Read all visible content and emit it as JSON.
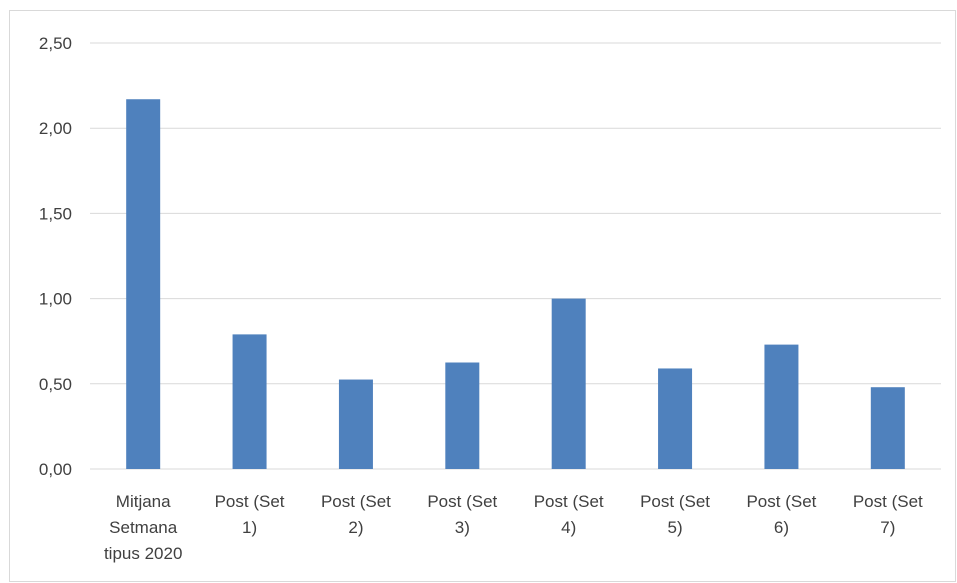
{
  "chart_data": {
    "type": "bar",
    "categories": [
      [
        "Mitjana",
        "Setmana",
        "tipus 2020"
      ],
      [
        "Post (Set",
        "1)"
      ],
      [
        "Post (Set",
        "2)"
      ],
      [
        "Post (Set",
        "3)"
      ],
      [
        "Post (Set",
        "4)"
      ],
      [
        "Post (Set",
        "5)"
      ],
      [
        "Post (Set",
        "6)"
      ],
      [
        "Post (Set",
        "7)"
      ]
    ],
    "values": [
      2.17,
      0.79,
      0.525,
      0.625,
      1.0,
      0.59,
      0.73,
      0.48
    ],
    "ylim": [
      0,
      2.5
    ],
    "yticks": [
      0,
      0.5,
      1.0,
      1.5,
      2.0,
      2.5
    ],
    "ytick_labels": [
      "0,00",
      "0,50",
      "1,00",
      "1,50",
      "2,00",
      "2,50"
    ],
    "title": "",
    "xlabel": "",
    "ylabel": "",
    "grid": true,
    "legend": "none",
    "colors": {
      "bar": "#4f81bd",
      "grid": "#d9d9d9",
      "text": "#404040",
      "border": "#d9d9d9"
    }
  }
}
